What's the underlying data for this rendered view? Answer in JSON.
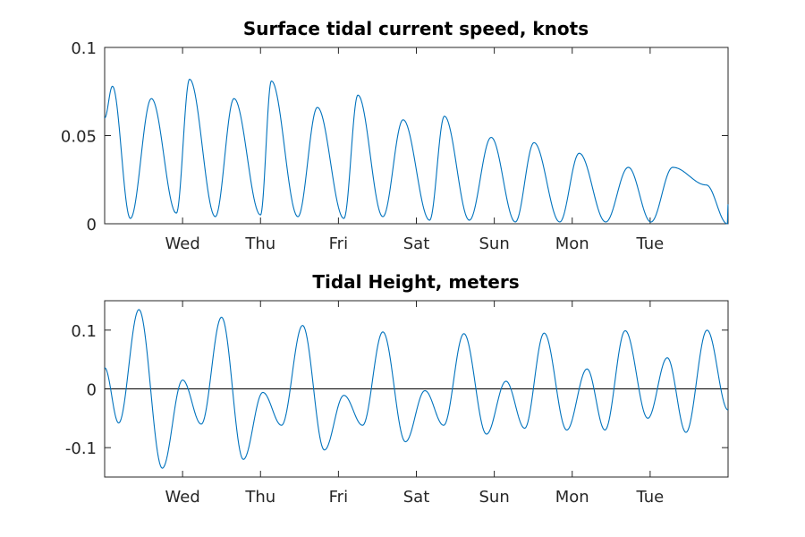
{
  "colors": {
    "series": "#0072BD",
    "axis": "#262626",
    "zero_line": "#000000"
  },
  "chart_data": [
    {
      "type": "line",
      "title": "Surface tidal current speed, knots",
      "xlabel": "",
      "ylabel": "",
      "xlim": [
        0,
        8
      ],
      "ylim": [
        0,
        0.1
      ],
      "yticks": [
        0,
        0.05,
        0.1
      ],
      "ytick_labels": [
        "0",
        "0.05",
        "0.1"
      ],
      "xticks": [
        1,
        2,
        3,
        4,
        5,
        6,
        7
      ],
      "xtick_labels": [
        "Wed",
        "Thu",
        "Fri",
        "Sat",
        "Sun",
        "Mon",
        "Tue"
      ],
      "series": [
        {
          "x": [
            0.0,
            0.1,
            0.33,
            0.6,
            0.92,
            1.09,
            1.42,
            1.66,
            2.0,
            2.14,
            2.48,
            2.73,
            3.07,
            3.25,
            3.57,
            3.83,
            4.17,
            4.36,
            4.68,
            4.96,
            5.27,
            5.51,
            5.84,
            6.09,
            6.43,
            6.72,
            7.01,
            7.29,
            7.72,
            7.99,
            8.0
          ],
          "y": [
            0.06,
            0.078,
            0.003,
            0.071,
            0.006,
            0.082,
            0.004,
            0.071,
            0.005,
            0.081,
            0.004,
            0.066,
            0.003,
            0.073,
            0.004,
            0.059,
            0.002,
            0.061,
            0.002,
            0.049,
            0.001,
            0.046,
            0.001,
            0.04,
            0.001,
            0.032,
            0.001,
            0.032,
            0.022,
            0.0,
            0.011
          ]
        }
      ]
    },
    {
      "type": "line",
      "title": "Tidal Height, meters",
      "xlabel": "",
      "ylabel": "",
      "xlim": [
        0,
        8
      ],
      "ylim": [
        -0.15,
        0.15
      ],
      "yticks": [
        -0.1,
        0,
        0.1
      ],
      "ytick_labels": [
        "-0.1",
        "0",
        "0.1"
      ],
      "xticks": [
        1,
        2,
        3,
        4,
        5,
        6,
        7
      ],
      "xtick_labels": [
        "Wed",
        "Thu",
        "Fri",
        "Sat",
        "Sun",
        "Mon",
        "Tue"
      ],
      "reference_line_y": 0,
      "series": [
        {
          "x": [
            0.0,
            0.18,
            0.44,
            0.74,
            1.0,
            1.24,
            1.5,
            1.78,
            2.03,
            2.27,
            2.54,
            2.82,
            3.07,
            3.31,
            3.57,
            3.86,
            4.11,
            4.35,
            4.61,
            4.9,
            5.15,
            5.39,
            5.64,
            5.93,
            6.19,
            6.42,
            6.68,
            6.97,
            7.22,
            7.46,
            7.73,
            8.0
          ],
          "y": [
            0.036,
            -0.058,
            0.135,
            -0.135,
            0.015,
            -0.06,
            0.122,
            -0.12,
            -0.006,
            -0.062,
            0.108,
            -0.104,
            -0.011,
            -0.062,
            0.097,
            -0.09,
            -0.003,
            -0.062,
            0.094,
            -0.077,
            0.013,
            -0.067,
            0.095,
            -0.07,
            0.034,
            -0.07,
            0.099,
            -0.05,
            0.053,
            -0.074,
            0.1,
            -0.036
          ]
        }
      ]
    }
  ]
}
